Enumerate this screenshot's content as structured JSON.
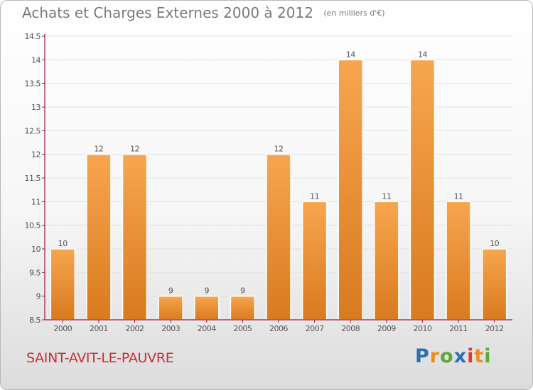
{
  "header": {
    "title": "Achats et Charges Externes 2000 à 2012",
    "subtitle": "(en milliers d'€)"
  },
  "footer": {
    "place": "SAINT-AVIT-LE-PAUVRE",
    "logo_text": "Proxiti"
  },
  "colors": {
    "bar_light": "#f7a64f",
    "bar_dark": "#d97a1e",
    "axis": "#9c1b39",
    "grid": "#e2e2e2",
    "text": "#555555",
    "title": "#7a7a7a",
    "place": "#c4313a"
  },
  "chart_data": {
    "type": "bar",
    "title": "Achats et Charges Externes 2000 à 2012",
    "subtitle": "(en milliers d'€)",
    "xlabel": "",
    "ylabel": "",
    "categories": [
      "2000",
      "2001",
      "2002",
      "2003",
      "2004",
      "2005",
      "2006",
      "2007",
      "2008",
      "2009",
      "2010",
      "2011",
      "2012"
    ],
    "values": [
      10,
      12,
      12,
      9,
      9,
      9,
      12,
      11,
      14,
      11,
      14,
      11,
      10
    ],
    "data_labels": [
      "10",
      "12",
      "12",
      "9",
      "9",
      "9",
      "12",
      "11",
      "14",
      "11",
      "14",
      "11",
      "10"
    ],
    "ylim": [
      8.5,
      14.5
    ],
    "yticks": [
      8.5,
      9,
      9.5,
      10,
      10.5,
      11,
      11.5,
      12,
      12.5,
      13,
      13.5,
      14,
      14.5
    ],
    "ytick_labels": [
      "8.5",
      "9",
      "9.5",
      "10",
      "10.5",
      "11",
      "11.5",
      "12",
      "12.5",
      "13",
      "13.5",
      "14",
      "14.5"
    ],
    "grid": true,
    "legend": "none"
  }
}
